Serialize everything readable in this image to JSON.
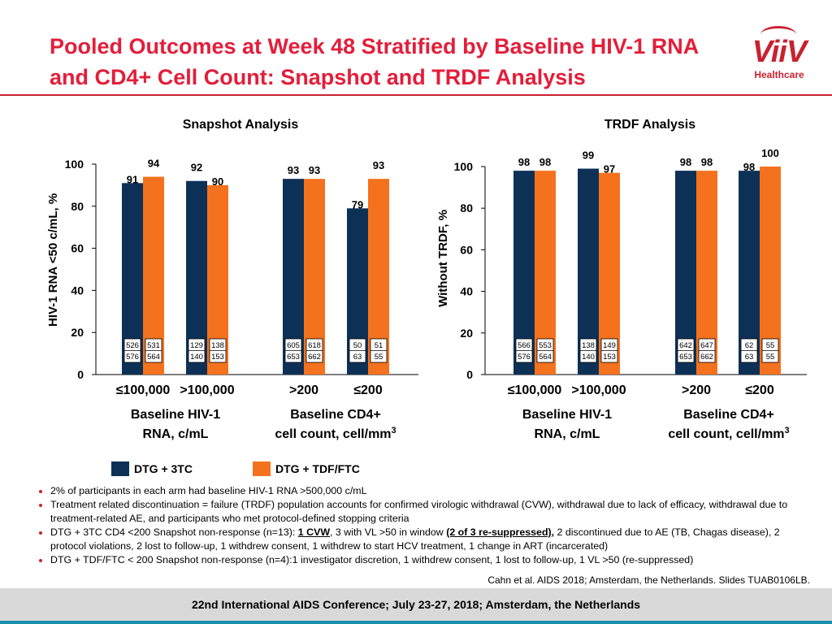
{
  "header": {
    "title_line1": "Pooled Outcomes at Week 48 Stratified by Baseline HIV-1 RNA",
    "title_line2": "and CD4+ Cell Count: Snapshot and TRDF Analysis",
    "logo_text": "ViiV",
    "logo_sub": "Healthcare"
  },
  "chart_data": [
    {
      "type": "bar",
      "title": "Snapshot Analysis",
      "ylabel": "HIV-1 RNA <50 c/mL, %",
      "ylim": [
        0,
        100
      ],
      "yticks": [
        "0",
        "20",
        "40",
        "60",
        "80",
        "100"
      ],
      "categories": [
        "≤100,000",
        ">100,000",
        ">200",
        "≤200"
      ],
      "group_labels": [
        {
          "line1": "Baseline HIV-1",
          "line2": "RNA, c/mL",
          "sup": ""
        },
        {
          "line1": "Baseline CD4+",
          "line2": "cell count, cell/mm",
          "sup": "3"
        }
      ],
      "series": [
        {
          "name": "DTG + 3TC",
          "values": [
            91,
            92,
            93,
            79
          ],
          "n": [
            "526",
            "129",
            "605",
            "50"
          ],
          "N": [
            "576",
            "140",
            "653",
            "63"
          ]
        },
        {
          "name": "DTG + TDF/FTC",
          "values": [
            94,
            90,
            93,
            93
          ],
          "n": [
            "531",
            "138",
            "618",
            "51"
          ],
          "N": [
            "564",
            "153",
            "662",
            "55"
          ]
        }
      ]
    },
    {
      "type": "bar",
      "title": "TRDF Analysis",
      "ylabel": "Without TRDF, %",
      "ylim": [
        0,
        100
      ],
      "yticks": [
        "0",
        "20",
        "40",
        "60",
        "80",
        "100"
      ],
      "categories": [
        "≤100,000",
        ">100,000",
        ">200",
        "≤200"
      ],
      "group_labels": [
        {
          "line1": "Baseline HIV-1",
          "line2": "RNA, c/mL",
          "sup": ""
        },
        {
          "line1": "Baseline CD4+",
          "line2": "cell count, cell/mm",
          "sup": "3"
        }
      ],
      "series": [
        {
          "name": "DTG + 3TC",
          "values": [
            98,
            99,
            98,
            98
          ],
          "n": [
            "566",
            "138",
            "642",
            "62"
          ],
          "N": [
            "576",
            "140",
            "653",
            "63"
          ]
        },
        {
          "name": "DTG + TDF/FTC",
          "values": [
            98,
            97,
            98,
            100
          ],
          "n": [
            "553",
            "149",
            "647",
            "55"
          ],
          "N": [
            "564",
            "153",
            "662",
            "55"
          ]
        }
      ]
    }
  ],
  "legend": [
    {
      "label": "DTG + 3TC",
      "color": "#0d3156"
    },
    {
      "label": "DTG + TDF/FTC",
      "color": "#f4721e"
    }
  ],
  "notes": {
    "b1": "2% of participants in each arm had baseline HIV-1 RNA >500,000 c/mL",
    "b2": "Treatment related discontinuation = failure (TRDF) population accounts for confirmed virologic withdrawal (CVW), withdrawal due to lack of efficacy, withdrawal due to treatment-related AE, and participants who met protocol-defined stopping criteria",
    "b3_pre": "DTG + 3TC CD4 <200 Snapshot non-response (n=13): ",
    "b3_u1": "1 CVW",
    "b3_mid": ", 3 with VL >50 in window ",
    "b3_u2": "(2 of 3 re-suppressed),",
    "b3_post": " 2 discontinued due to AE (TB, Chagas disease), 2 protocol violations, 2 lost to follow-up, 1 withdrew consent, 1 withdrew to start HCV treatment, 1 change in ART (incarcerated)",
    "b4": "DTG + TDF/FTC < 200 Snapshot non-response (n=4):1 investigator discretion, 1 withdrew consent, 1 lost to follow-up, 1 VL >50 (re-suppressed)"
  },
  "citation": "Cahn et al. AIDS 2018; Amsterdam, the Netherlands. Slides TUAB0106LB.",
  "footer": "22nd International AIDS Conference; July 23-27, 2018; Amsterdam, the Netherlands"
}
